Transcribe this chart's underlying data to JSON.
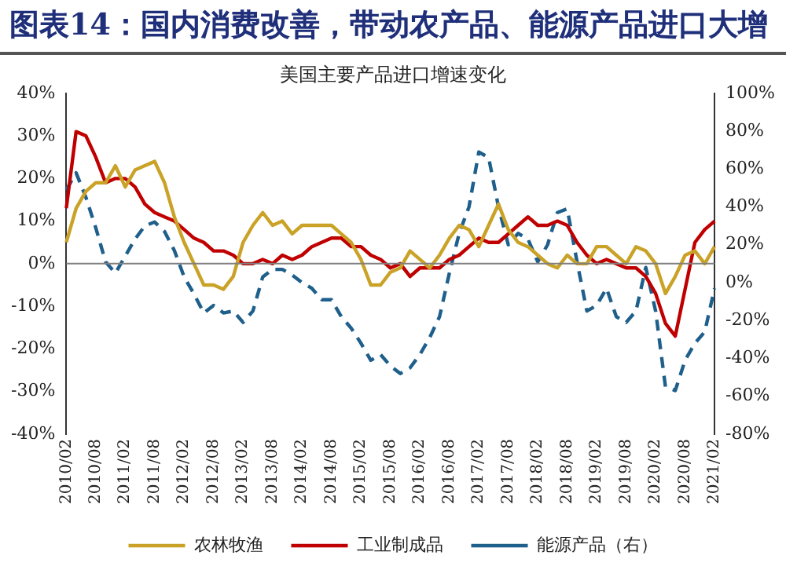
{
  "chart_data": {
    "type": "line",
    "title": "图表14：国内消费改善，带动农产品、能源产品进口大增",
    "subtitle": "美国主要产品进口增速变化",
    "categories": [
      "2010/02",
      null,
      null,
      "2010/08",
      null,
      null,
      "2011/02",
      null,
      null,
      "2011/08",
      null,
      null,
      "2012/02",
      null,
      null,
      "2012/08",
      null,
      null,
      "2013/02",
      null,
      null,
      "2013/08",
      null,
      null,
      "2014/02",
      null,
      null,
      "2014/08",
      null,
      null,
      "2015/02",
      null,
      null,
      "2015/08",
      null,
      null,
      "2016/02",
      null,
      null,
      "2016/08",
      null,
      null,
      "2017/02",
      null,
      null,
      "2017/08",
      null,
      null,
      "2018/02",
      null,
      null,
      "2018/08",
      null,
      null,
      "2019/02",
      null,
      null,
      "2019/08",
      null,
      null,
      "2020/02",
      null,
      null,
      "2020/08",
      null,
      null,
      "2021/02"
    ],
    "series": [
      {
        "name": "农林牧渔",
        "color": "#c9a227",
        "values": [
          5,
          13,
          17,
          19,
          19,
          23,
          18,
          22,
          23,
          24,
          19,
          11,
          5,
          0,
          -5,
          -5,
          -6,
          -3,
          5,
          9,
          12,
          9,
          10,
          7,
          9,
          9,
          9,
          9,
          7,
          5,
          1,
          -5,
          -5,
          -2,
          -1,
          3,
          1,
          -1,
          2,
          6,
          9,
          8,
          4,
          9,
          14,
          8,
          5,
          4,
          2,
          0,
          -1,
          2,
          0,
          0,
          4,
          4,
          2,
          0,
          4,
          3,
          0,
          -7,
          -3,
          2,
          3,
          0,
          4
        ]
      },
      {
        "name": "工业制成品",
        "color": "#c00000",
        "values": [
          13,
          31,
          30,
          25,
          19,
          20,
          20,
          18,
          14,
          12,
          11,
          10,
          8,
          6,
          5,
          3,
          3,
          2,
          0,
          0,
          1,
          0,
          2,
          1,
          2,
          4,
          5,
          6,
          6,
          4,
          4,
          2,
          1,
          -1,
          0,
          -3,
          -1,
          -1,
          -1,
          1,
          2,
          4,
          6,
          5,
          5,
          7,
          9,
          11,
          9,
          9,
          10,
          9,
          5,
          2,
          0,
          1,
          0,
          -1,
          -1,
          -3,
          -7,
          -14,
          -17,
          -6,
          5,
          8,
          10
        ]
      },
      {
        "name": "能源产品（右）",
        "color": "#1f5f8b",
        "axis": "y2",
        "line_style": "dashed",
        "values": [
          49,
          58,
          45,
          29,
          11,
          5,
          14,
          23,
          30,
          32,
          27,
          17,
          3,
          -6,
          -16,
          -12,
          -16,
          -15,
          -21,
          -15,
          3,
          7,
          7,
          4,
          0,
          -3,
          -9,
          -9,
          -18,
          -24,
          -32,
          -41,
          -38,
          -44,
          -48,
          -45,
          -38,
          -29,
          -18,
          5,
          26,
          40,
          69,
          66,
          40,
          20,
          26,
          23,
          11,
          20,
          37,
          39,
          11,
          -15,
          -12,
          -3,
          -18,
          -21,
          -15,
          8,
          -15,
          -55,
          -57,
          -41,
          -32,
          -26,
          -3
        ]
      }
    ],
    "ylim": [
      -40,
      40
    ],
    "yticks": [
      {
        "value": -40,
        "label": "-40%"
      },
      {
        "value": -30,
        "label": "-30%"
      },
      {
        "value": -20,
        "label": "-20%"
      },
      {
        "value": -10,
        "label": "-10%"
      },
      {
        "value": 0,
        "label": "0%"
      },
      {
        "value": 10,
        "label": "10%"
      },
      {
        "value": 20,
        "label": "20%"
      },
      {
        "value": 30,
        "label": "30%"
      },
      {
        "value": 40,
        "label": "40%"
      }
    ],
    "y2lim": [
      -80,
      100
    ],
    "y2ticks": [
      {
        "value": -80,
        "label": "-80%"
      },
      {
        "value": -60,
        "label": "-60%"
      },
      {
        "value": -40,
        "label": "-40%"
      },
      {
        "value": -20,
        "label": "-20%"
      },
      {
        "value": 0,
        "label": "0%"
      },
      {
        "value": 20,
        "label": "20%"
      },
      {
        "value": 40,
        "label": "40%"
      },
      {
        "value": 60,
        "label": "60%"
      },
      {
        "value": 80,
        "label": "80%"
      },
      {
        "value": 100,
        "label": "100%"
      }
    ],
    "ref_lines": [
      {
        "axis": "y",
        "value": 0,
        "color": "#808080"
      }
    ],
    "grid": false,
    "legend": "bottom",
    "marker": "none",
    "line_style": "solid"
  }
}
